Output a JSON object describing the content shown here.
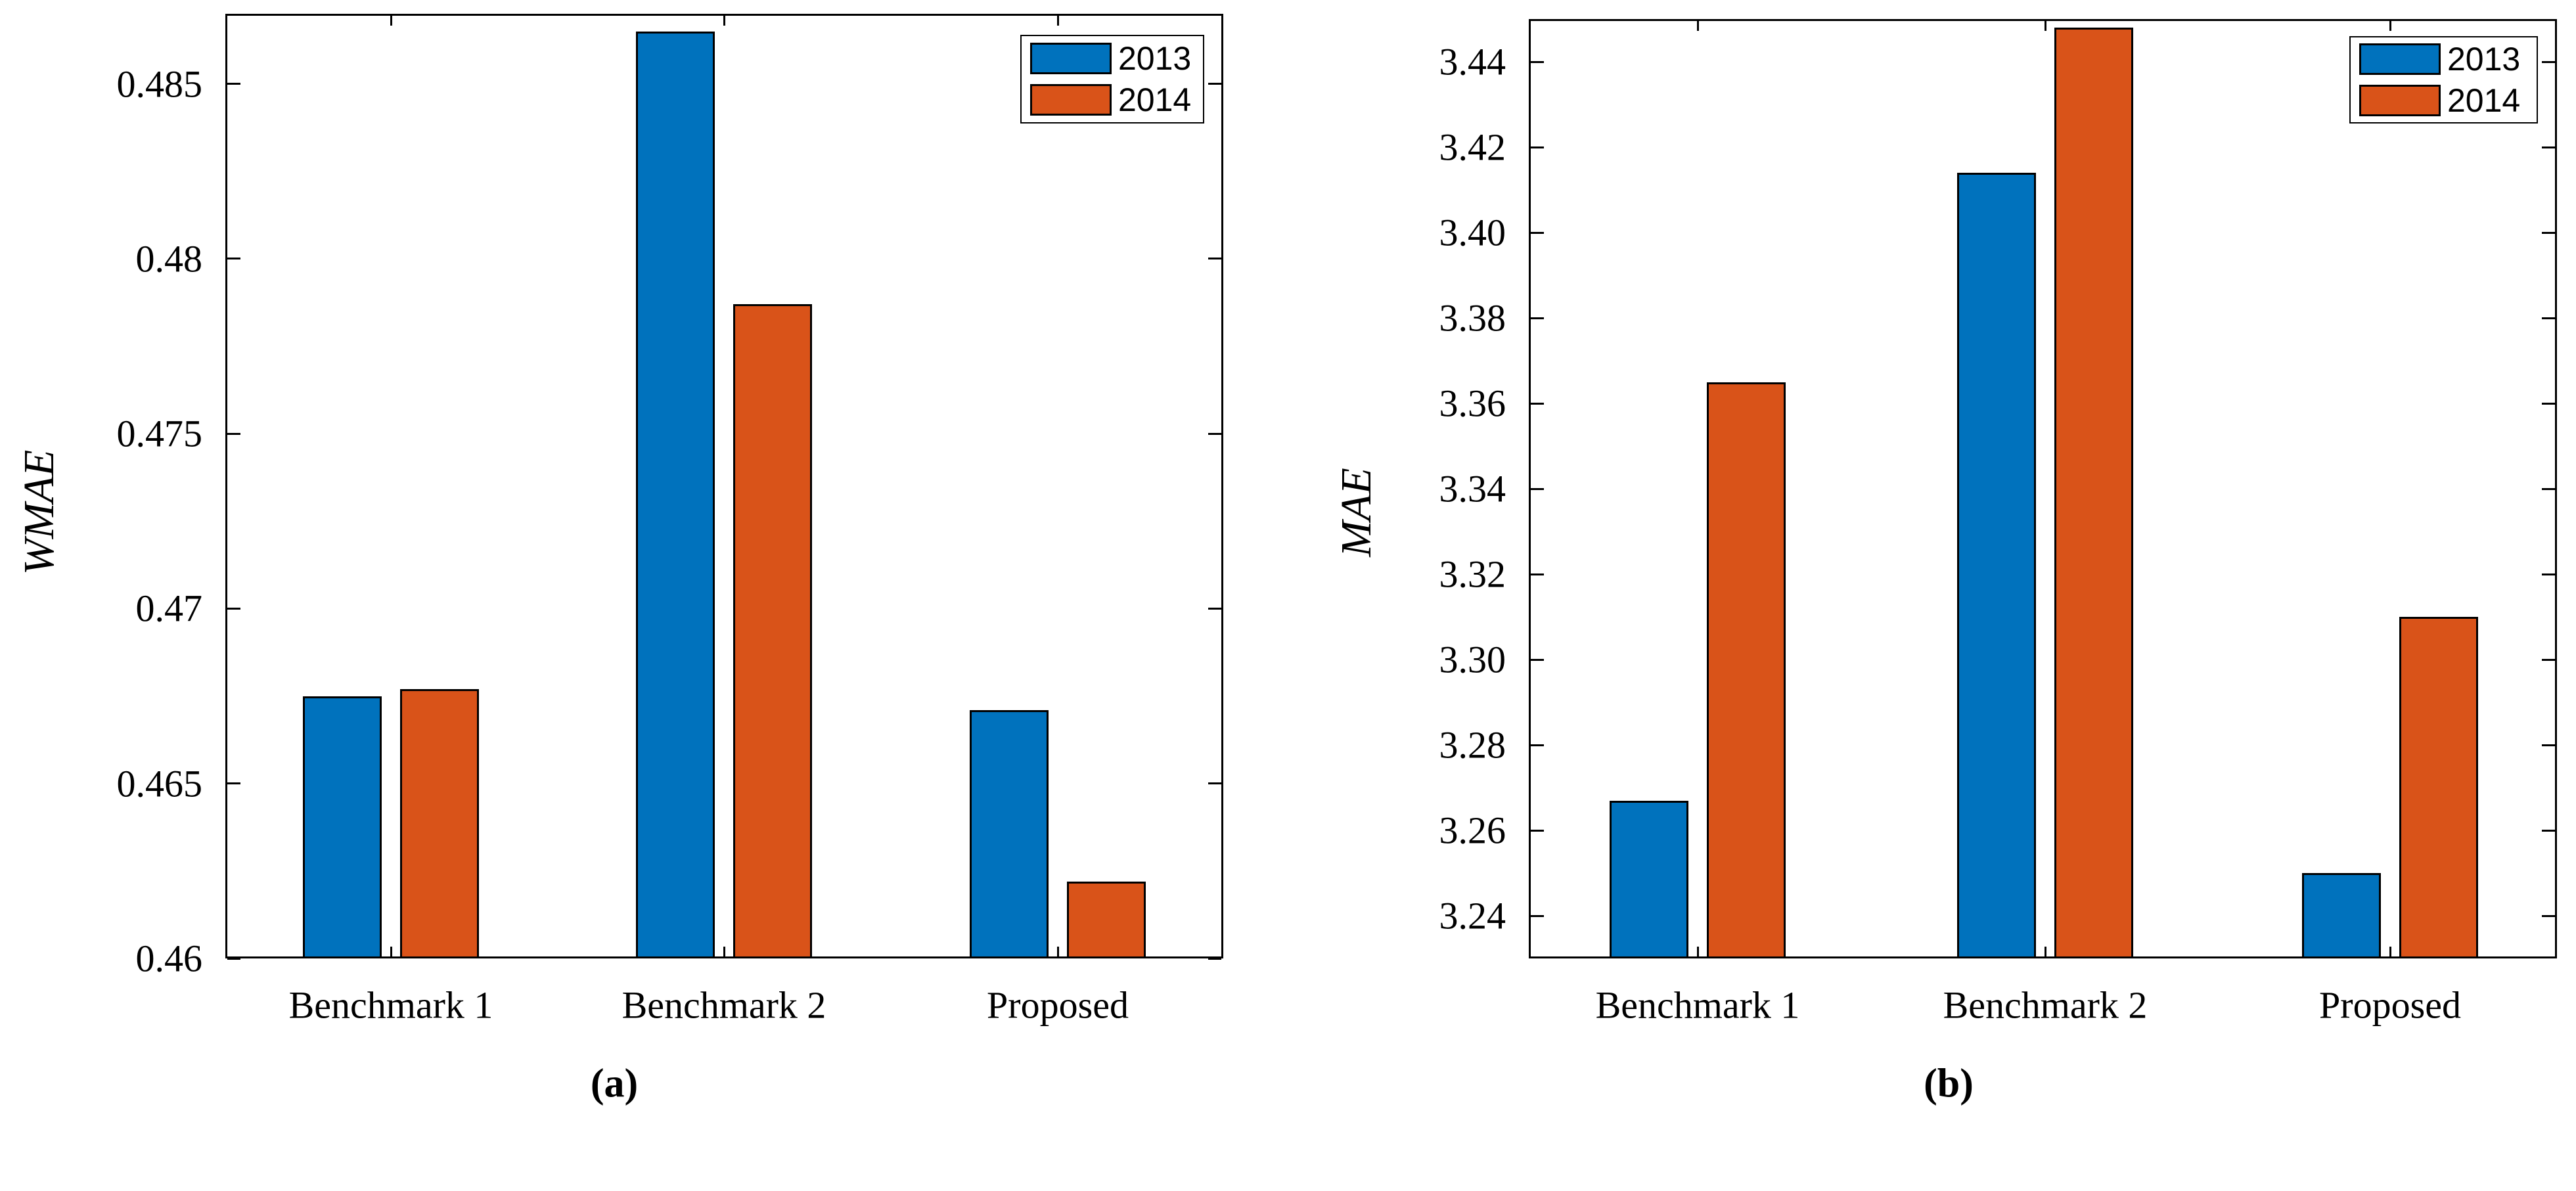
{
  "figure": {
    "background": "#ffffff",
    "axis_color": "#000000",
    "panel_captions": [
      "(a)",
      "(b)"
    ]
  },
  "chart_data": [
    {
      "type": "bar",
      "title": "",
      "caption": "(a)",
      "categories": [
        "Benchmark 1",
        "Benchmark 2",
        "Proposed"
      ],
      "series": [
        {
          "name": "2013",
          "color": "#0072BD",
          "values": [
            0.4675,
            0.4865,
            0.4671
          ]
        },
        {
          "name": "2014",
          "color": "#D95319",
          "values": [
            0.4677,
            0.4787,
            0.4622
          ]
        }
      ],
      "xlabel": "",
      "ylabel": "WMAE",
      "ylim": [
        0.46,
        0.487
      ],
      "ytick_values": [
        0.46,
        0.465,
        0.47,
        0.475,
        0.48,
        0.485
      ],
      "ytick_labels": [
        "0.46",
        "0.465",
        "0.47",
        "0.475",
        "0.48",
        "0.485"
      ],
      "grid": false,
      "legend_position": "top-right"
    },
    {
      "type": "bar",
      "title": "",
      "caption": "(b)",
      "categories": [
        "Benchmark 1",
        "Benchmark 2",
        "Proposed"
      ],
      "series": [
        {
          "name": "2013",
          "color": "#0072BD",
          "values": [
            3.267,
            3.414,
            3.25
          ]
        },
        {
          "name": "2014",
          "color": "#D95319",
          "values": [
            3.365,
            3.448,
            3.31
          ]
        }
      ],
      "xlabel": "",
      "ylabel": "MAE",
      "ylim": [
        3.23,
        3.45
      ],
      "ytick_values": [
        3.24,
        3.26,
        3.28,
        3.3,
        3.32,
        3.34,
        3.36,
        3.38,
        3.4,
        3.42,
        3.44
      ],
      "ytick_labels": [
        "3.24",
        "3.26",
        "3.28",
        "3.30",
        "3.32",
        "3.34",
        "3.36",
        "3.38",
        "3.40",
        "3.42",
        "3.44"
      ],
      "grid": false,
      "legend_position": "top-right"
    }
  ]
}
